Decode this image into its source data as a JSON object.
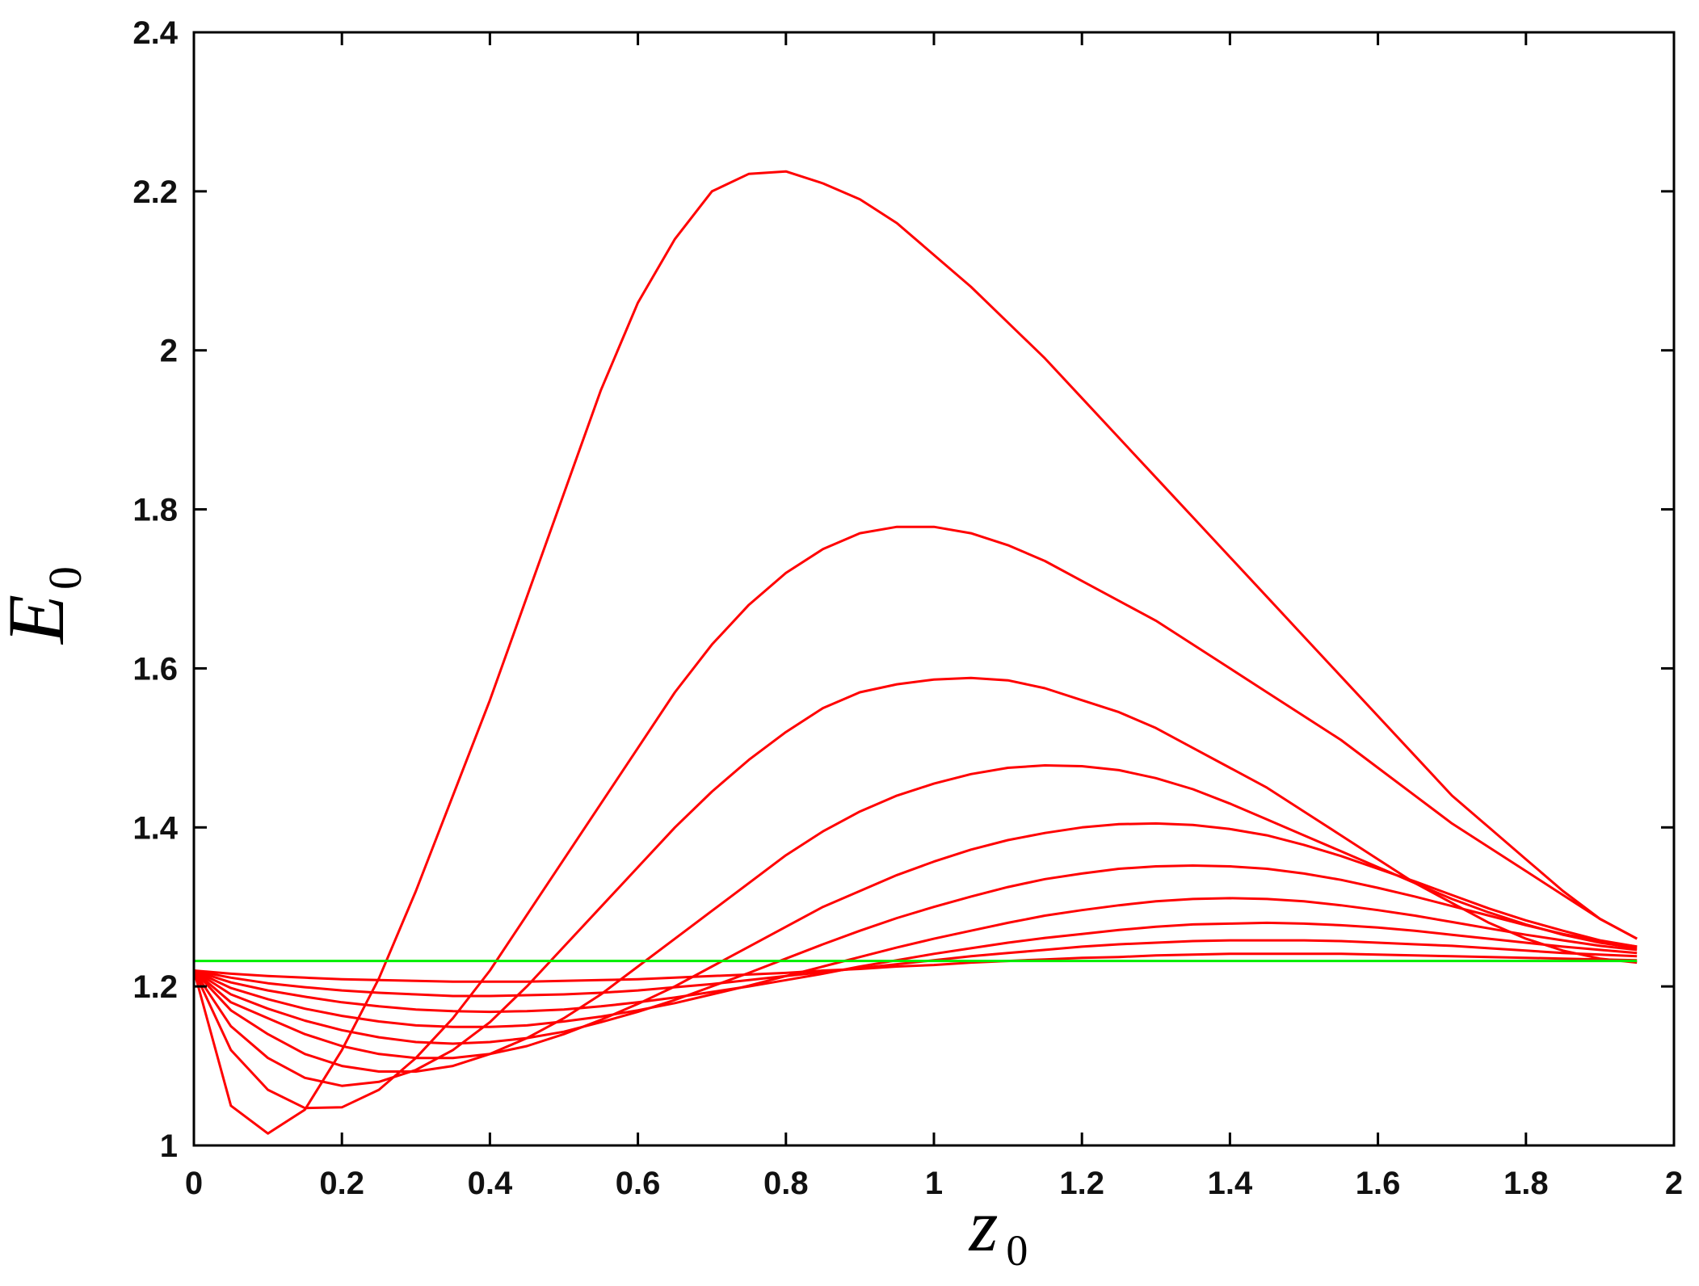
{
  "chart_data": {
    "type": "line",
    "title": "",
    "xlabel": "z",
    "xlabel_sub": "0",
    "ylabel": "E",
    "ylabel_sub": "0",
    "xlim": [
      0,
      2
    ],
    "ylim": [
      1,
      2.4
    ],
    "xticks": [
      "0",
      "0.2",
      "0.4",
      "0.6",
      "0.8",
      "1",
      "1.2",
      "1.4",
      "1.6",
      "1.8",
      "2"
    ],
    "yticks": [
      "1",
      "1.2",
      "1.4",
      "1.6",
      "1.8",
      "2",
      "2.2",
      "2.4"
    ],
    "grid": false,
    "legend": "none",
    "x": [
      0,
      0.05,
      0.1,
      0.15,
      0.2,
      0.25,
      0.3,
      0.35,
      0.4,
      0.45,
      0.5,
      0.55,
      0.6,
      0.65,
      0.7,
      0.75,
      0.8,
      0.85,
      0.9,
      0.95,
      1.0,
      1.05,
      1.1,
      1.15,
      1.2,
      1.25,
      1.3,
      1.35,
      1.4,
      1.45,
      1.5,
      1.55,
      1.6,
      1.65,
      1.7,
      1.75,
      1.8,
      1.85,
      1.9,
      1.95
    ],
    "series": [
      {
        "color": "#ff0000",
        "values": [
          1.22,
          1.05,
          1.015,
          1.045,
          1.12,
          1.21,
          1.32,
          1.44,
          1.56,
          1.69,
          1.82,
          1.95,
          2.06,
          2.14,
          2.2,
          2.222,
          2.225,
          2.21,
          2.19,
          2.16,
          2.12,
          2.08,
          2.035,
          1.99,
          1.94,
          1.89,
          1.84,
          1.79,
          1.74,
          1.69,
          1.64,
          1.59,
          1.54,
          1.49,
          1.44,
          1.4,
          1.36,
          1.32,
          1.285,
          1.26
        ]
      },
      {
        "color": "#ff0000",
        "values": [
          1.22,
          1.12,
          1.07,
          1.047,
          1.048,
          1.07,
          1.11,
          1.16,
          1.22,
          1.29,
          1.36,
          1.43,
          1.5,
          1.57,
          1.63,
          1.68,
          1.72,
          1.75,
          1.77,
          1.778,
          1.778,
          1.77,
          1.755,
          1.735,
          1.71,
          1.685,
          1.66,
          1.63,
          1.6,
          1.57,
          1.54,
          1.51,
          1.475,
          1.44,
          1.405,
          1.375,
          1.345,
          1.315,
          1.285,
          1.26
        ]
      },
      {
        "color": "#ff0000",
        "values": [
          1.22,
          1.15,
          1.11,
          1.085,
          1.075,
          1.08,
          1.095,
          1.12,
          1.155,
          1.2,
          1.25,
          1.3,
          1.35,
          1.4,
          1.445,
          1.485,
          1.52,
          1.55,
          1.57,
          1.58,
          1.586,
          1.588,
          1.585,
          1.575,
          1.56,
          1.545,
          1.525,
          1.5,
          1.475,
          1.45,
          1.42,
          1.39,
          1.36,
          1.33,
          1.305,
          1.28,
          1.26,
          1.245,
          1.235,
          1.23
        ]
      },
      {
        "color": "#ff0000",
        "values": [
          1.22,
          1.17,
          1.14,
          1.115,
          1.1,
          1.093,
          1.093,
          1.1,
          1.115,
          1.135,
          1.16,
          1.19,
          1.225,
          1.26,
          1.295,
          1.33,
          1.365,
          1.395,
          1.42,
          1.44,
          1.455,
          1.467,
          1.475,
          1.478,
          1.477,
          1.472,
          1.462,
          1.448,
          1.43,
          1.41,
          1.39,
          1.37,
          1.35,
          1.33,
          1.31,
          1.293,
          1.278,
          1.265,
          1.255,
          1.248
        ]
      },
      {
        "color": "#ff0000",
        "values": [
          1.22,
          1.18,
          1.16,
          1.14,
          1.125,
          1.115,
          1.11,
          1.11,
          1.115,
          1.125,
          1.14,
          1.158,
          1.178,
          1.2,
          1.225,
          1.25,
          1.275,
          1.3,
          1.32,
          1.34,
          1.357,
          1.372,
          1.384,
          1.393,
          1.4,
          1.404,
          1.405,
          1.403,
          1.398,
          1.39,
          1.378,
          1.364,
          1.348,
          1.332,
          1.315,
          1.298,
          1.283,
          1.27,
          1.258,
          1.25
        ]
      },
      {
        "color": "#ff0000",
        "values": [
          1.22,
          1.19,
          1.172,
          1.157,
          1.145,
          1.136,
          1.13,
          1.128,
          1.13,
          1.135,
          1.143,
          1.155,
          1.168,
          1.183,
          1.2,
          1.217,
          1.235,
          1.253,
          1.27,
          1.286,
          1.3,
          1.313,
          1.325,
          1.335,
          1.342,
          1.348,
          1.351,
          1.352,
          1.351,
          1.348,
          1.342,
          1.334,
          1.324,
          1.313,
          1.301,
          1.289,
          1.277,
          1.266,
          1.257,
          1.25
        ]
      },
      {
        "color": "#ff0000",
        "values": [
          1.22,
          1.198,
          1.184,
          1.172,
          1.163,
          1.156,
          1.151,
          1.149,
          1.149,
          1.151,
          1.156,
          1.162,
          1.17,
          1.179,
          1.19,
          1.201,
          1.213,
          1.225,
          1.237,
          1.249,
          1.26,
          1.27,
          1.28,
          1.289,
          1.296,
          1.302,
          1.307,
          1.31,
          1.311,
          1.31,
          1.307,
          1.302,
          1.296,
          1.289,
          1.281,
          1.273,
          1.265,
          1.258,
          1.251,
          1.246
        ]
      },
      {
        "color": "#ff0000",
        "values": [
          1.22,
          1.205,
          1.195,
          1.187,
          1.18,
          1.175,
          1.171,
          1.169,
          1.168,
          1.169,
          1.171,
          1.175,
          1.18,
          1.186,
          1.193,
          1.2,
          1.208,
          1.216,
          1.225,
          1.233,
          1.241,
          1.248,
          1.255,
          1.261,
          1.266,
          1.271,
          1.275,
          1.278,
          1.279,
          1.28,
          1.279,
          1.277,
          1.274,
          1.27,
          1.265,
          1.26,
          1.255,
          1.25,
          1.246,
          1.242
        ]
      },
      {
        "color": "#ff0000",
        "values": [
          1.22,
          1.211,
          1.204,
          1.199,
          1.195,
          1.192,
          1.19,
          1.188,
          1.188,
          1.189,
          1.19,
          1.192,
          1.195,
          1.199,
          1.203,
          1.208,
          1.213,
          1.218,
          1.223,
          1.228,
          1.233,
          1.238,
          1.242,
          1.246,
          1.25,
          1.253,
          1.255,
          1.257,
          1.258,
          1.258,
          1.258,
          1.257,
          1.255,
          1.253,
          1.251,
          1.248,
          1.245,
          1.242,
          1.24,
          1.238
        ]
      },
      {
        "color": "#ff0000",
        "values": [
          1.22,
          1.216,
          1.213,
          1.211,
          1.209,
          1.208,
          1.207,
          1.206,
          1.206,
          1.206,
          1.207,
          1.208,
          1.209,
          1.211,
          1.213,
          1.215,
          1.217,
          1.22,
          1.222,
          1.225,
          1.227,
          1.23,
          1.232,
          1.234,
          1.236,
          1.237,
          1.239,
          1.24,
          1.241,
          1.241,
          1.241,
          1.241,
          1.24,
          1.239,
          1.238,
          1.237,
          1.236,
          1.235,
          1.234,
          1.233
        ]
      },
      {
        "color": "#00ee00",
        "values": [
          1.232,
          1.232,
          1.232,
          1.232,
          1.232,
          1.232,
          1.232,
          1.232,
          1.232,
          1.232,
          1.232,
          1.232,
          1.232,
          1.232,
          1.232,
          1.232,
          1.232,
          1.232,
          1.232,
          1.232,
          1.232,
          1.232,
          1.232,
          1.232,
          1.232,
          1.232,
          1.232,
          1.232,
          1.232,
          1.232,
          1.232,
          1.232,
          1.232,
          1.232,
          1.232,
          1.232,
          1.232,
          1.232,
          1.232,
          1.232
        ]
      }
    ]
  }
}
